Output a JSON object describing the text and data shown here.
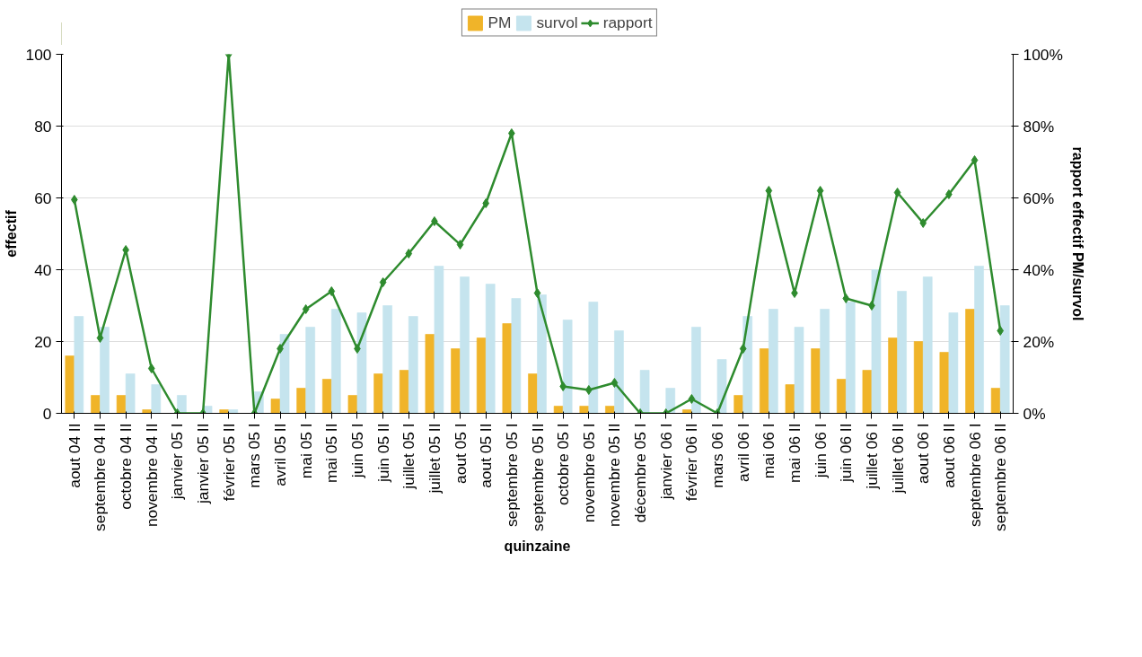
{
  "chart_data": {
    "type": "bar",
    "xlabel": "quinzaine",
    "ylabel": "effectif",
    "y2label": "rapport effectif PM/survol",
    "categories": [
      "aout 04 II",
      "septembre 04 II",
      "octobre 04 II",
      "novembre 04 II",
      "janvier 05 I",
      "janvier 05 II",
      "février 05 II",
      "mars 05 I",
      "avril 05 II",
      "mai 05 I",
      "mai 05 II",
      "juin 05 I",
      "juin 05 II",
      "juillet 05 I",
      "juillet 05 II",
      "aout 05 I",
      "aout 05 II",
      "septembre 05 I",
      "septembre 05 II",
      "octobre 05 I",
      "novembre 05 I",
      "novembre 05 II",
      "décembre 05 I",
      "janvier 06 I",
      "février 06 II",
      "mars 06 I",
      "avril 06 I",
      "mai 06 I",
      "mai 06 II",
      "juin 06 I",
      "juin 06 II",
      "juillet 06 I",
      "juillet 06 II",
      "aout 06 I",
      "aout 06 II",
      "septembre 06 I",
      "septembre 06 II"
    ],
    "series": [
      {
        "name": "PM",
        "color": "#f0b429",
        "values": [
          16,
          5,
          5,
          1,
          0,
          0,
          1,
          0,
          4,
          7,
          9.5,
          5,
          11,
          12,
          22,
          18,
          21,
          25,
          11,
          2,
          2,
          2,
          0,
          0,
          1,
          0,
          5,
          18,
          8,
          18,
          9.5,
          12,
          21,
          20,
          17,
          29,
          7
        ]
      },
      {
        "name": "survol",
        "color": "#c5e4ee",
        "values": [
          27,
          24,
          11,
          8,
          5,
          2,
          1,
          6,
          22,
          24,
          29,
          28,
          30,
          27,
          41,
          38,
          36,
          32,
          33,
          26,
          31,
          23,
          12,
          7,
          24,
          15,
          27,
          29,
          24,
          29,
          31,
          40,
          34,
          38,
          28,
          41,
          30
        ]
      },
      {
        "name": "rapport",
        "color": "#2e8b2e",
        "type": "line",
        "axis": "y2",
        "marker": "diamond",
        "values": [
          59.5,
          21,
          45.5,
          12.5,
          0,
          0,
          100,
          0,
          18,
          29,
          34,
          18,
          36.5,
          44.5,
          53.5,
          47,
          58.5,
          78,
          33.5,
          7.5,
          6.5,
          8.5,
          0,
          0,
          4,
          0,
          18,
          62,
          33.5,
          62,
          32,
          30,
          61.5,
          53,
          61,
          70.5,
          23
        ]
      }
    ],
    "ylim": [
      0,
      100
    ],
    "yticks": [
      0,
      20,
      40,
      60,
      80,
      100
    ],
    "y2lim": [
      0,
      100
    ],
    "y2ticks": [
      {
        "value": 0,
        "label": "0%"
      },
      {
        "value": 20,
        "label": "20%"
      },
      {
        "value": 40,
        "label": "40%"
      },
      {
        "value": 60,
        "label": "60%"
      },
      {
        "value": 80,
        "label": "80%"
      },
      {
        "value": 100,
        "label": "100%"
      }
    ],
    "grid": "y",
    "legend": "top"
  }
}
